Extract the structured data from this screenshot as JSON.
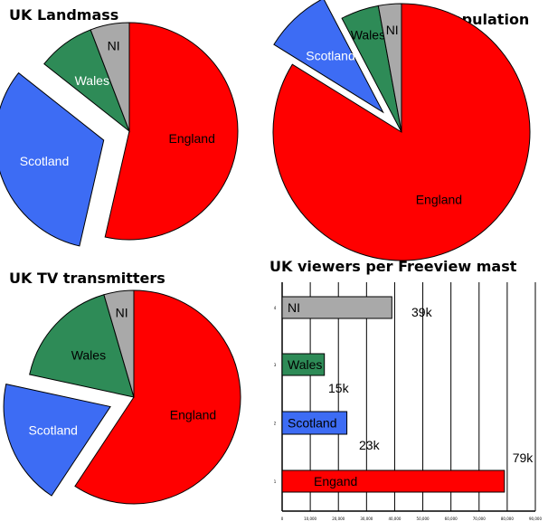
{
  "chart_data": [
    {
      "type": "pie",
      "title": "UK Landmass",
      "slices": [
        {
          "label": "England",
          "value": 130279,
          "color": "#ff0000",
          "label_color": "dark",
          "exploded": false
        },
        {
          "label": "Scotland",
          "value": 77933,
          "color": "#3d6cf4",
          "label_color": "light",
          "exploded": true
        },
        {
          "label": "Wales",
          "value": 20779,
          "color": "#2e8b57",
          "label_color": "light",
          "exploded": false
        },
        {
          "label": "NI",
          "value": 14130,
          "color": "#a9a9a9",
          "label_color": "dark",
          "exploded": false
        }
      ]
    },
    {
      "type": "pie",
      "title": "UK Population",
      "slices": [
        {
          "label": "England",
          "value": 84,
          "color": "#ff0000",
          "label_color": "dark",
          "exploded": false
        },
        {
          "label": "Scotland",
          "value": 8.5,
          "color": "#3d6cf4",
          "label_color": "light",
          "exploded": true
        },
        {
          "label": "Wales",
          "value": 4.8,
          "color": "#2e8b57",
          "label_color": "dark",
          "exploded": false
        },
        {
          "label": "NI",
          "value": 2.9,
          "color": "#a9a9a9",
          "label_color": "dark",
          "exploded": false
        }
      ]
    },
    {
      "type": "pie",
      "title": "UK TV transmitters",
      "slices": [
        {
          "label": "England",
          "value": 59,
          "color": "#ff0000",
          "label_color": "dark",
          "exploded": false
        },
        {
          "label": "Scotland",
          "value": 19,
          "color": "#3d6cf4",
          "label_color": "light",
          "exploded": true
        },
        {
          "label": "Wales",
          "value": 17,
          "color": "#2e8b57",
          "label_color": "dark",
          "exploded": false
        },
        {
          "label": "NI",
          "value": 4.5,
          "color": "#a9a9a9",
          "label_color": "dark",
          "exploded": false
        }
      ]
    },
    {
      "type": "bar",
      "orientation": "horizontal",
      "title": "UK viewers per Freeview mast",
      "xlim": [
        0,
        90000
      ],
      "x_ticks": [
        "0",
        "10,000",
        "20,000",
        "30,000",
        "40,000",
        "50,000",
        "60,000",
        "70,000",
        "80,000",
        "90,000"
      ],
      "grid": "vertical",
      "categories": [
        {
          "label": "NI",
          "value": 39000,
          "value_label": "39k",
          "color": "#a9a9a9",
          "tick": "4"
        },
        {
          "label": "Wales",
          "value": 15000,
          "value_label": "15k",
          "color": "#2e8b57",
          "tick": "3"
        },
        {
          "label": "Scotland",
          "value": 23000,
          "value_label": "23k",
          "color": "#3d6cf4",
          "tick": "2"
        },
        {
          "label": "Engand",
          "value": 79000,
          "value_label": "79k",
          "color": "#ff0000",
          "tick": "1"
        }
      ]
    }
  ]
}
